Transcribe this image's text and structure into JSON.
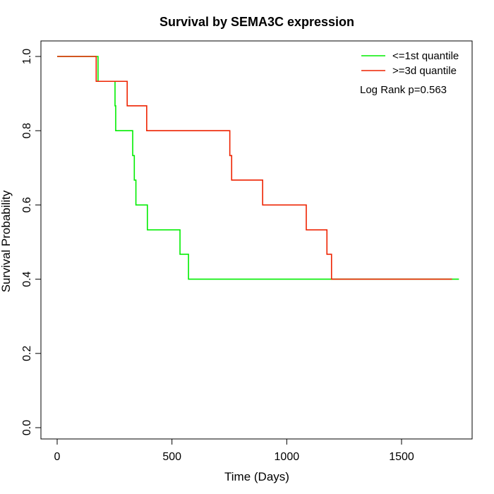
{
  "chart_data": {
    "type": "line",
    "title": "Survival by SEMA3C expression",
    "xlabel": "Time (Days)",
    "ylabel": "Survival Probability",
    "xlim": [
      0,
      1800
    ],
    "ylim": [
      0,
      1
    ],
    "x_ticks": [
      0,
      500,
      1000,
      1500
    ],
    "y_ticks": [
      0.0,
      0.2,
      0.4,
      0.6,
      0.8,
      1.0
    ],
    "x_tick_labels": [
      "0",
      "500",
      "1000",
      "1500"
    ],
    "y_tick_labels": [
      "0.0",
      "0.2",
      "0.4",
      "0.6",
      "0.8",
      "1.0"
    ],
    "grid": false,
    "legend_position": "top-right",
    "annotation": "Log Rank p=0.563",
    "series": [
      {
        "name": "<=1st quantile",
        "color": "#00ee00",
        "step": "post",
        "x": [
          0,
          178,
          178,
          252,
          252,
          255,
          326,
          329,
          336,
          343,
          393,
          535,
          572,
          1750
        ],
        "y": [
          1.0,
          1.0,
          0.933,
          0.933,
          0.867,
          0.8,
          0.8,
          0.733,
          0.667,
          0.6,
          0.533,
          0.467,
          0.4,
          0.4
        ]
      },
      {
        "name": ">=3d quantile",
        "color": "#ee2200",
        "step": "post",
        "x": [
          0,
          170,
          305,
          390,
          752,
          760,
          895,
          1085,
          1175,
          1195,
          1720
        ],
        "y": [
          1.0,
          0.933,
          0.867,
          0.8,
          0.733,
          0.667,
          0.6,
          0.533,
          0.467,
          0.4,
          0.4
        ]
      }
    ]
  }
}
